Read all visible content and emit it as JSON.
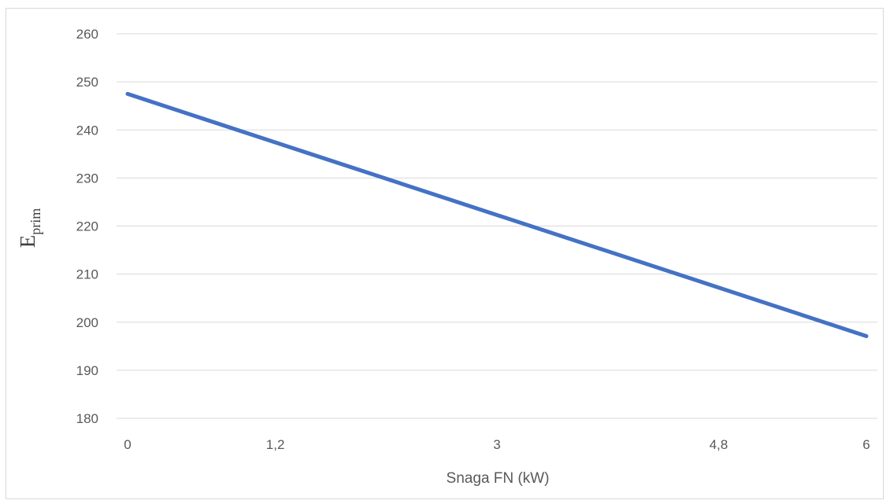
{
  "chart_data": {
    "type": "line",
    "x": [
      "0",
      "1,2",
      "3",
      "4,8",
      "6"
    ],
    "x_values": [
      0,
      1.2,
      3,
      4.8,
      6
    ],
    "series": [
      {
        "values": [
          247.5,
          237.4,
          222.3,
          207.2,
          197.1
        ],
        "color": "#4472c4"
      }
    ],
    "xlabel": "Snaga FN (kW)",
    "ylabel_main": "E",
    "ylabel_sub": "prim",
    "ylim": [
      180,
      260
    ],
    "yticks": [
      180,
      190,
      200,
      210,
      220,
      230,
      240,
      250,
      260
    ],
    "xlim": [
      0,
      6
    ],
    "grid": true,
    "legend": "none"
  }
}
